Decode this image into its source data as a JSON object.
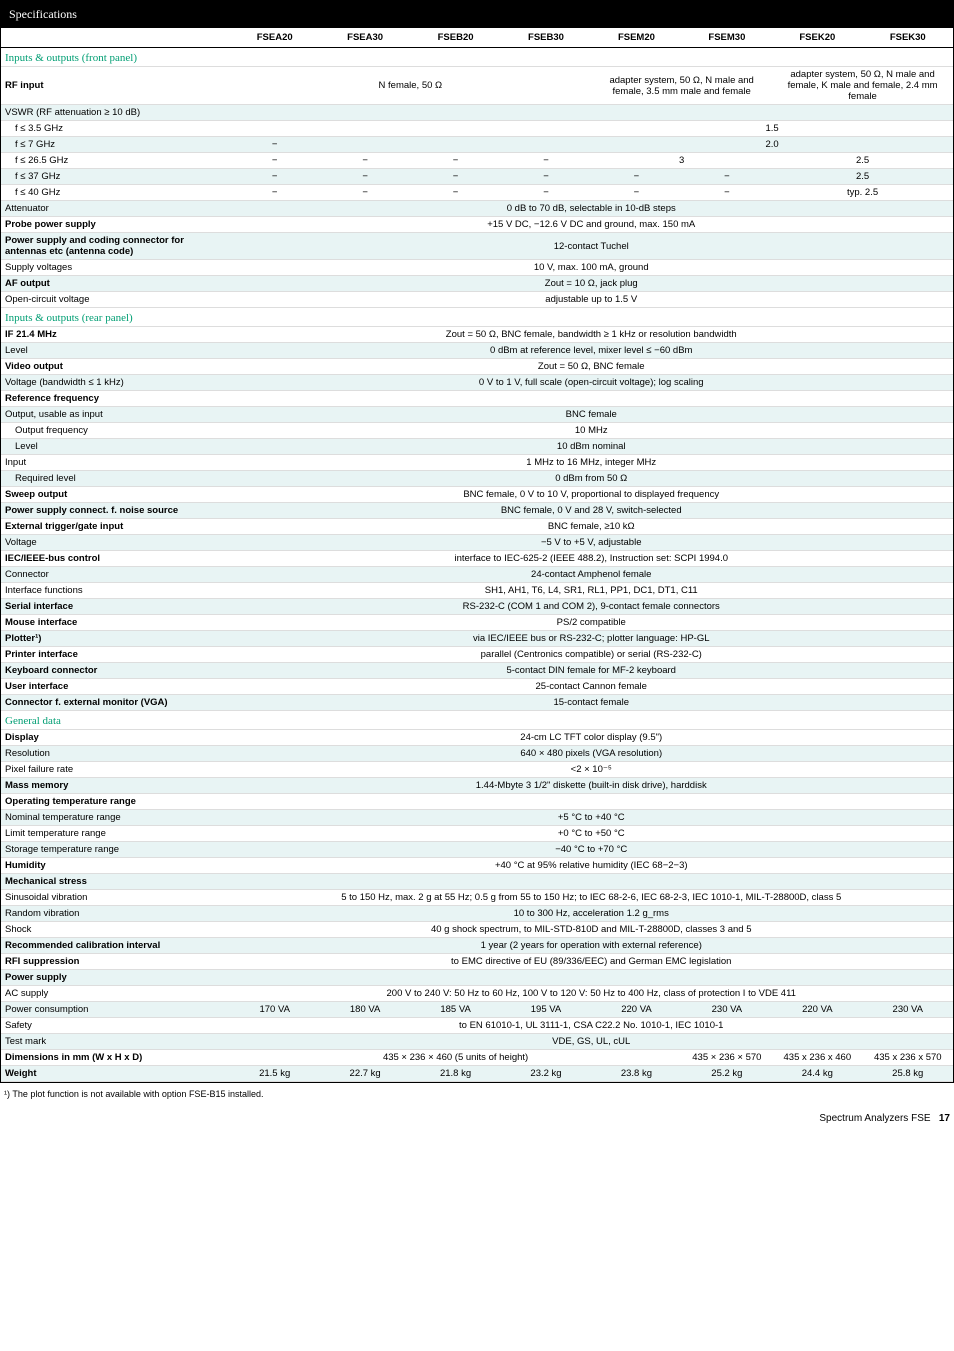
{
  "title": "Specifications",
  "columns": [
    "FSEA20",
    "FSEA30",
    "FSEB20",
    "FSEB30",
    "FSEM20",
    "FSEM30",
    "FSEK20",
    "FSEK30"
  ],
  "sections": [
    {
      "name": "Inputs & outputs (front panel)",
      "rows": [
        {
          "label": "RF input",
          "bold": true,
          "shaded": false,
          "cells": [
            {
              "text": "N female, 50 Ω",
              "span": 4
            },
            {
              "text": "adapter system, 50 Ω, N male and female, 3.5 mm male and female",
              "span": 2
            },
            {
              "text": "adapter system, 50 Ω, N male and female, K male and female, 2.4 mm female",
              "span": 2
            }
          ]
        },
        {
          "label": "VSWR (RF attenuation ≥ 10 dB)",
          "shaded": true,
          "cells": [
            {
              "text": "",
              "span": 8
            }
          ]
        },
        {
          "label": "f ≤ 3.5 GHz",
          "indent": true,
          "cells": [
            {
              "text": "",
              "span": 4
            },
            {
              "text": "1.5",
              "span": 4
            }
          ]
        },
        {
          "label": "f ≤ 7 GHz",
          "indent": true,
          "shaded": true,
          "cells": [
            {
              "text": "−",
              "span": 1
            },
            {
              "text": "",
              "span": 3
            },
            {
              "text": "2.0",
              "span": 4
            }
          ]
        },
        {
          "label": "f ≤ 26.5 GHz",
          "indent": true,
          "cells": [
            {
              "text": "−",
              "span": 1
            },
            {
              "text": "−",
              "span": 1
            },
            {
              "text": "−",
              "span": 1
            },
            {
              "text": "−",
              "span": 1
            },
            {
              "text": "3",
              "span": 2
            },
            {
              "text": "2.5",
              "span": 2
            }
          ]
        },
        {
          "label": "f ≤ 37 GHz",
          "indent": true,
          "shaded": true,
          "cells": [
            {
              "text": "−",
              "span": 1
            },
            {
              "text": "−",
              "span": 1
            },
            {
              "text": "−",
              "span": 1
            },
            {
              "text": "−",
              "span": 1
            },
            {
              "text": "−",
              "span": 1
            },
            {
              "text": "−",
              "span": 1
            },
            {
              "text": "2.5",
              "span": 2
            }
          ]
        },
        {
          "label": "f ≤ 40 GHz",
          "indent": true,
          "cells": [
            {
              "text": "−",
              "span": 1
            },
            {
              "text": "−",
              "span": 1
            },
            {
              "text": "−",
              "span": 1
            },
            {
              "text": "−",
              "span": 1
            },
            {
              "text": "−",
              "span": 1
            },
            {
              "text": "−",
              "span": 1
            },
            {
              "text": "typ. 2.5",
              "span": 2
            }
          ]
        },
        {
          "label": "Attenuator",
          "shaded": true,
          "cells": [
            {
              "text": "0 dB to 70 dB, selectable in 10-dB steps",
              "span": 8
            }
          ]
        },
        {
          "label": "Probe power supply",
          "bold": true,
          "cells": [
            {
              "text": "+15 V DC, −12.6 V DC and ground, max. 150 mA",
              "span": 8
            }
          ]
        },
        {
          "label": "Power supply and coding connector for antennas etc (antenna code)",
          "bold": true,
          "shaded": true,
          "cells": [
            {
              "text": "12-contact Tuchel",
              "span": 8
            }
          ]
        },
        {
          "label": "Supply voltages",
          "cells": [
            {
              "text": "10 V, max. 100 mA, ground",
              "span": 8
            }
          ]
        },
        {
          "label": "AF output",
          "bold": true,
          "shaded": true,
          "cells": [
            {
              "text": "Zout = 10 Ω, jack plug",
              "span": 8
            }
          ]
        },
        {
          "label": "Open-circuit voltage",
          "cells": [
            {
              "text": "adjustable up to 1.5 V",
              "span": 8
            }
          ]
        }
      ]
    },
    {
      "name": "Inputs & outputs (rear panel)",
      "rows": [
        {
          "label": "IF 21.4 MHz",
          "bold": true,
          "cells": [
            {
              "text": "Zout = 50 Ω, BNC female, bandwidth ≥ 1 kHz or resolution bandwidth",
              "span": 8
            }
          ]
        },
        {
          "label": "Level",
          "shaded": true,
          "cells": [
            {
              "text": "0 dBm at reference level, mixer level ≤ −60 dBm",
              "span": 8
            }
          ]
        },
        {
          "label": "Video output",
          "bold": true,
          "cells": [
            {
              "text": "Zout = 50 Ω, BNC female",
              "span": 8
            }
          ]
        },
        {
          "label": "Voltage (bandwidth ≤ 1 kHz)",
          "shaded": true,
          "cells": [
            {
              "text": "0 V to 1 V, full scale (open-circuit voltage); log scaling",
              "span": 8
            }
          ]
        },
        {
          "label": "Reference frequency",
          "bold": true,
          "cells": [
            {
              "text": "",
              "span": 8
            }
          ]
        },
        {
          "label": "Output, usable as input",
          "shaded": true,
          "cells": [
            {
              "text": "BNC female",
              "span": 8
            }
          ]
        },
        {
          "label": "Output frequency",
          "indent": true,
          "cells": [
            {
              "text": "10 MHz",
              "span": 8
            }
          ]
        },
        {
          "label": "Level",
          "indent": true,
          "shaded": true,
          "cells": [
            {
              "text": "10 dBm nominal",
              "span": 8
            }
          ]
        },
        {
          "label": "Input",
          "cells": [
            {
              "text": "1 MHz to 16 MHz, integer MHz",
              "span": 8
            }
          ]
        },
        {
          "label": "Required level",
          "indent": true,
          "shaded": true,
          "cells": [
            {
              "text": "0 dBm from 50 Ω",
              "span": 8
            }
          ]
        },
        {
          "label": "Sweep output",
          "bold": true,
          "cells": [
            {
              "text": "BNC female, 0 V to 10 V, proportional to displayed frequency",
              "span": 8
            }
          ]
        },
        {
          "label": "Power supply connect. f. noise source",
          "bold": true,
          "shaded": true,
          "cells": [
            {
              "text": "BNC female, 0 V and 28 V, switch-selected",
              "span": 8
            }
          ]
        },
        {
          "label": "External trigger/gate input",
          "bold": true,
          "cells": [
            {
              "text": "BNC female, ≥10 kΩ",
              "span": 8
            }
          ]
        },
        {
          "label": "Voltage",
          "shaded": true,
          "cells": [
            {
              "text": "−5 V to +5 V, adjustable",
              "span": 8
            }
          ]
        },
        {
          "label": "IEC/IEEE-bus control",
          "bold": true,
          "cells": [
            {
              "text": "interface to IEC-625-2 (IEEE 488.2), Instruction set: SCPI 1994.0",
              "span": 8
            }
          ]
        },
        {
          "label": "Connector",
          "shaded": true,
          "cells": [
            {
              "text": "24-contact Amphenol female",
              "span": 8
            }
          ]
        },
        {
          "label": "Interface functions",
          "cells": [
            {
              "text": "SH1, AH1, T6, L4, SR1, RL1, PP1, DC1, DT1, C11",
              "span": 8
            }
          ]
        },
        {
          "label": "Serial interface",
          "bold": true,
          "shaded": true,
          "cells": [
            {
              "text": "RS-232-C (COM 1 and COM 2), 9-contact female connectors",
              "span": 8
            }
          ]
        },
        {
          "label": "Mouse interface",
          "bold": true,
          "cells": [
            {
              "text": "PS/2 compatible",
              "span": 8
            }
          ]
        },
        {
          "label": "Plotter¹)",
          "bold": true,
          "shaded": true,
          "cells": [
            {
              "text": "via IEC/IEEE bus or RS-232-C; plotter language: HP-GL",
              "span": 8
            }
          ]
        },
        {
          "label": "Printer interface",
          "bold": true,
          "cells": [
            {
              "text": "parallel (Centronics compatible) or serial (RS-232-C)",
              "span": 8
            }
          ]
        },
        {
          "label": "Keyboard connector",
          "bold": true,
          "shaded": true,
          "cells": [
            {
              "text": "5-contact DIN female for MF-2 keyboard",
              "span": 8
            }
          ]
        },
        {
          "label": "User interface",
          "bold": true,
          "cells": [
            {
              "text": "25-contact Cannon female",
              "span": 8
            }
          ]
        },
        {
          "label": "Connector f. external monitor (VGA)",
          "bold": true,
          "shaded": true,
          "cells": [
            {
              "text": "15-contact female",
              "span": 8
            }
          ]
        }
      ]
    },
    {
      "name": "General data",
      "rows": [
        {
          "label": "Display",
          "bold": true,
          "cells": [
            {
              "text": "24-cm LC TFT color display (9.5\")",
              "span": 8
            }
          ]
        },
        {
          "label": "Resolution",
          "shaded": true,
          "cells": [
            {
              "text": "640 × 480 pixels (VGA resolution)",
              "span": 8
            }
          ]
        },
        {
          "label": "Pixel failure rate",
          "cells": [
            {
              "text": "<2 × 10⁻⁵",
              "span": 8
            }
          ]
        },
        {
          "label": "Mass memory",
          "bold": true,
          "shaded": true,
          "cells": [
            {
              "text": "1.44-Mbyte 3 1/2\" diskette (built-in disk drive), harddisk",
              "span": 8
            }
          ]
        },
        {
          "label": "Operating temperature range",
          "bold": true,
          "cells": [
            {
              "text": "",
              "span": 8
            }
          ]
        },
        {
          "label": "Nominal temperature range",
          "shaded": true,
          "cells": [
            {
              "text": "+5 °C to +40 °C",
              "span": 8
            }
          ]
        },
        {
          "label": "Limit temperature range",
          "cells": [
            {
              "text": "+0 °C to +50 °C",
              "span": 8
            }
          ]
        },
        {
          "label": "Storage temperature range",
          "shaded": true,
          "cells": [
            {
              "text": "−40 °C to +70 °C",
              "span": 8
            }
          ]
        },
        {
          "label": "Humidity",
          "bold": true,
          "cells": [
            {
              "text": "+40 °C at 95% relative humidity (IEC 68−2−3)",
              "span": 8
            }
          ]
        },
        {
          "label": "Mechanical stress",
          "bold": true,
          "shaded": true,
          "cells": [
            {
              "text": "",
              "span": 8
            }
          ]
        },
        {
          "label": "Sinusoidal vibration",
          "cells": [
            {
              "text": "5 to 150 Hz, max. 2 g at 55 Hz; 0.5 g from 55 to 150 Hz; to IEC 68-2-6, IEC 68-2-3, IEC 1010-1, MIL-T-28800D, class 5",
              "span": 8
            }
          ]
        },
        {
          "label": "Random vibration",
          "shaded": true,
          "cells": [
            {
              "text": "10 to 300 Hz, acceleration 1.2 g_rms",
              "span": 8
            }
          ]
        },
        {
          "label": "Shock",
          "cells": [
            {
              "text": "40 g shock spectrum, to MIL-STD-810D and MIL-T-28800D, classes 3 and 5",
              "span": 8
            }
          ]
        },
        {
          "label": "Recommended calibration interval",
          "bold": true,
          "shaded": true,
          "cells": [
            {
              "text": "1 year (2 years for operation with external reference)",
              "span": 8
            }
          ]
        },
        {
          "label": "RFI suppression",
          "bold": true,
          "cells": [
            {
              "text": "to EMC directive of EU (89/336/EEC) and German EMC legislation",
              "span": 8
            }
          ]
        },
        {
          "label": "Power supply",
          "bold": true,
          "shaded": true,
          "cells": [
            {
              "text": "",
              "span": 8
            }
          ]
        },
        {
          "label": "AC supply",
          "cells": [
            {
              "text": "200 V to 240 V: 50 Hz to 60 Hz, 100 V to 120 V: 50 Hz to 400 Hz, class of protection I to VDE 411",
              "span": 8
            }
          ]
        },
        {
          "label": "Power consumption",
          "shaded": true,
          "cells": [
            {
              "text": "170 VA",
              "span": 1
            },
            {
              "text": "180 VA",
              "span": 1
            },
            {
              "text": "185 VA",
              "span": 1
            },
            {
              "text": "195 VA",
              "span": 1
            },
            {
              "text": "220 VA",
              "span": 1
            },
            {
              "text": "230 VA",
              "span": 1
            },
            {
              "text": "220 VA",
              "span": 1
            },
            {
              "text": "230 VA",
              "span": 1
            }
          ]
        },
        {
          "label": "Safety",
          "cells": [
            {
              "text": "to EN 61010-1, UL 3111-1, CSA C22.2 No. 1010-1, IEC 1010-1",
              "span": 8
            }
          ]
        },
        {
          "label": "Test mark",
          "shaded": true,
          "cells": [
            {
              "text": "VDE, GS, UL, cUL",
              "span": 8
            }
          ]
        },
        {
          "label": "Dimensions in mm (W x H x D)",
          "bold": true,
          "cells": [
            {
              "text": "435 × 236 × 460 (5 units of height)",
              "span": 5
            },
            {
              "text": "435 × 236 × 570",
              "span": 1
            },
            {
              "text": "435 x 236 x 460",
              "span": 1
            },
            {
              "text": "435 x 236 x 570",
              "span": 1
            }
          ]
        },
        {
          "label": "Weight",
          "bold": true,
          "shaded": true,
          "cells": [
            {
              "text": "21.5 kg",
              "span": 1
            },
            {
              "text": "22.7 kg",
              "span": 1
            },
            {
              "text": "21.8 kg",
              "span": 1
            },
            {
              "text": "23.2 kg",
              "span": 1
            },
            {
              "text": "23.8 kg",
              "span": 1
            },
            {
              "text": "25.2 kg",
              "span": 1
            },
            {
              "text": "24.4 kg",
              "span": 1
            },
            {
              "text": "25.8 kg",
              "span": 1
            }
          ]
        }
      ]
    }
  ],
  "footnote": "¹) The plot function is not available with option FSE-B15 installed.",
  "footer": {
    "text": "Spectrum Analyzers FSE",
    "page": "17"
  },
  "colors": {
    "header_bg": "#000000",
    "header_fg": "#ffffff",
    "section_fg": "#009e73",
    "shade_bg": "#e8f4f4",
    "text": "#000000",
    "border": "#dddddd"
  }
}
